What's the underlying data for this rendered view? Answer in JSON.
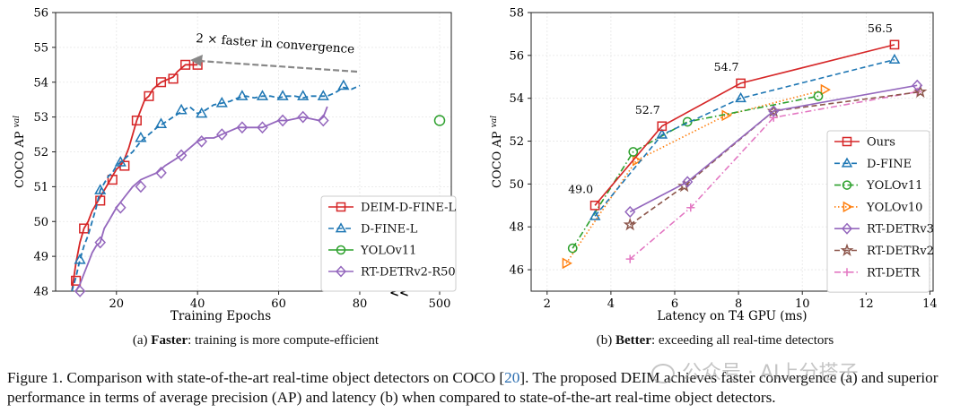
{
  "chart_data": [
    {
      "type": "line",
      "xlabel": "Training Epochs",
      "ylabel": "COCO AP",
      "ylabel_sup": "val",
      "xlim": [
        5,
        82
      ],
      "ylim": [
        48,
        56
      ],
      "xticks": [
        "20",
        "40",
        "60",
        "80"
      ],
      "xtick_values": [
        20,
        40,
        60,
        80
      ],
      "broken_axis_symbol": "<<",
      "broken_axis_tick": "500",
      "yticks": [
        "48",
        "49",
        "50",
        "51",
        "52",
        "53",
        "54",
        "55",
        "56"
      ],
      "grid": true,
      "legend_position": "lower-right",
      "annotation": "2 × faster in convergence",
      "subcaption_bold": "Faster",
      "subcaption_prefix": "(a)",
      "subcaption_rest": ": training is more compute-efficient",
      "series": [
        {
          "name": "DEIM-D-FINE-L",
          "color": "#d62728",
          "marker": "square",
          "dash": "solid",
          "curve_x": [
            9,
            10,
            11,
            12,
            13,
            14,
            15,
            16,
            17,
            18,
            19,
            20,
            21,
            22,
            23,
            24,
            25,
            26,
            27,
            28,
            29,
            30,
            31,
            32,
            33,
            34,
            35,
            36,
            37,
            38,
            39,
            40
          ],
          "curve_y": [
            48.0,
            48.8,
            49.4,
            49.8,
            50.0,
            50.3,
            50.5,
            50.7,
            50.9,
            51.1,
            51.3,
            51.5,
            51.6,
            51.8,
            52.1,
            52.5,
            52.9,
            53.2,
            53.5,
            53.6,
            53.8,
            53.9,
            54.0,
            54.05,
            54.1,
            54.15,
            54.3,
            54.4,
            54.5,
            54.5,
            54.5,
            54.5
          ],
          "marker_x": [
            10,
            12,
            16,
            19,
            22,
            25,
            28,
            31,
            34,
            37,
            40
          ],
          "marker_y": [
            48.3,
            49.8,
            50.6,
            51.2,
            51.6,
            52.9,
            53.6,
            54.0,
            54.1,
            54.5,
            54.5
          ]
        },
        {
          "name": "D-FINE-L",
          "color": "#1f77b4",
          "marker": "triangle",
          "dash": "dashed",
          "curve_x": [
            9,
            10,
            11,
            12,
            13,
            14,
            15,
            16,
            17,
            18,
            19,
            20,
            22,
            24,
            26,
            28,
            30,
            32,
            34,
            36,
            38,
            40,
            42,
            44,
            46,
            48,
            50,
            52,
            54,
            56,
            58,
            60,
            62,
            64,
            66,
            68,
            70,
            72,
            74,
            76,
            78,
            80
          ],
          "curve_y": [
            48.0,
            48.4,
            48.9,
            49.3,
            49.6,
            50.0,
            50.4,
            50.9,
            51.1,
            51.3,
            51.4,
            51.6,
            51.8,
            52.0,
            52.3,
            52.5,
            52.7,
            52.85,
            53.0,
            53.15,
            53.3,
            53.1,
            53.2,
            53.35,
            53.4,
            53.45,
            53.55,
            53.6,
            53.55,
            53.6,
            53.6,
            53.55,
            53.6,
            53.6,
            53.55,
            53.6,
            53.6,
            53.6,
            53.7,
            53.85,
            53.8,
            53.9
          ],
          "marker_x": [
            11,
            16,
            21,
            26,
            31,
            36,
            41,
            46,
            51,
            56,
            61,
            66,
            71,
            76
          ],
          "marker_y": [
            48.9,
            50.9,
            51.7,
            52.4,
            52.8,
            53.2,
            53.1,
            53.4,
            53.6,
            53.6,
            53.6,
            53.6,
            53.6,
            53.9
          ]
        },
        {
          "name": "YOLOv11",
          "color": "#2ca02c",
          "marker": "circle",
          "dash": "solid",
          "at_broken_tick": true,
          "marker_y": [
            52.9
          ]
        },
        {
          "name": "RT-DETRv2-R50",
          "color": "#9467bd",
          "marker": "diamond",
          "dash": "solid",
          "curve_x": [
            10,
            11,
            12,
            13,
            14,
            15,
            16,
            17,
            18,
            19,
            20,
            22,
            24,
            26,
            28,
            30,
            32,
            34,
            36,
            38,
            40,
            42,
            44,
            46,
            48,
            50,
            52,
            54,
            56,
            58,
            60,
            62,
            64,
            66,
            68,
            70,
            71,
            72
          ],
          "curve_y": [
            48.0,
            48.2,
            48.5,
            48.8,
            49.1,
            49.3,
            49.4,
            49.8,
            50.0,
            50.2,
            50.4,
            50.7,
            51.0,
            51.2,
            51.3,
            51.4,
            51.6,
            51.75,
            51.9,
            52.1,
            52.3,
            52.4,
            52.4,
            52.5,
            52.6,
            52.7,
            52.7,
            52.7,
            52.7,
            52.8,
            52.9,
            52.9,
            52.95,
            53.0,
            52.95,
            52.9,
            53.0,
            53.3
          ],
          "marker_x": [
            11,
            16,
            21,
            26,
            31,
            36,
            41,
            46,
            51,
            56,
            61,
            66,
            71
          ],
          "marker_y": [
            48.0,
            49.4,
            50.4,
            51.0,
            51.4,
            51.9,
            52.3,
            52.5,
            52.7,
            52.7,
            52.9,
            53.0,
            52.9
          ]
        }
      ]
    },
    {
      "type": "line",
      "xlabel": "Latency on T4 GPU (ms)",
      "ylabel": "COCO AP",
      "ylabel_sup": "val",
      "xlim": [
        1.5,
        14.1
      ],
      "ylim": [
        45,
        58
      ],
      "xticks": [
        "2",
        "4",
        "6",
        "8",
        "10",
        "12",
        "14"
      ],
      "xtick_values": [
        2,
        4,
        6,
        8,
        10,
        12,
        14
      ],
      "yticks": [
        "46",
        "48",
        "50",
        "52",
        "54",
        "56",
        "58"
      ],
      "ytick_values": [
        46,
        48,
        50,
        52,
        54,
        56,
        58
      ],
      "grid": true,
      "legend_position": "lower-right",
      "subcaption_bold": "Better",
      "subcaption_prefix": "(b)",
      "subcaption_rest": ": exceeding all real-time detectors",
      "point_labels": [
        {
          "text": "49.0",
          "x": 3.5,
          "y": 49.0
        },
        {
          "text": "52.7",
          "x": 5.6,
          "y": 52.7
        },
        {
          "text": "54.7",
          "x": 8.07,
          "y": 54.7
        },
        {
          "text": "56.5",
          "x": 12.89,
          "y": 56.5
        }
      ],
      "series": [
        {
          "name": "Ours",
          "color": "#d62728",
          "marker": "square",
          "dash": "solid",
          "x": [
            3.5,
            5.6,
            8.07,
            12.89
          ],
          "y": [
            49.0,
            52.7,
            54.7,
            56.5
          ]
        },
        {
          "name": "D-FINE",
          "color": "#1f77b4",
          "marker": "triangle",
          "dash": "dashed",
          "x": [
            3.5,
            5.6,
            8.07,
            12.89
          ],
          "y": [
            48.5,
            52.3,
            54.0,
            55.8
          ]
        },
        {
          "name": "YOLOv11",
          "color": "#2ca02c",
          "marker": "circle",
          "dash": "dashdot",
          "x": [
            2.8,
            4.7,
            6.4,
            10.5
          ],
          "y": [
            47.0,
            51.5,
            52.9,
            54.1
          ]
        },
        {
          "name": "YOLOv10",
          "color": "#ff7f0e",
          "marker": "triangle-right",
          "dash": "dotted",
          "x": [
            2.6,
            4.8,
            7.6,
            10.7
          ],
          "y": [
            46.3,
            51.1,
            53.2,
            54.4
          ]
        },
        {
          "name": "RT-DETRv3",
          "color": "#9467bd",
          "marker": "diamond",
          "dash": "solid",
          "x": [
            4.6,
            6.4,
            9.1,
            13.6
          ],
          "y": [
            48.7,
            50.1,
            53.4,
            54.6
          ]
        },
        {
          "name": "RT-DETRv2",
          "color": "#8c564b",
          "marker": "star",
          "dash": "dashed",
          "x": [
            4.6,
            6.3,
            9.1,
            13.7
          ],
          "y": [
            48.1,
            49.9,
            53.4,
            54.3
          ]
        },
        {
          "name": "RT-DETR",
          "color": "#e377c2",
          "marker": "plus",
          "dash": "dashdot",
          "x": [
            4.6,
            6.5,
            9.1,
            13.6
          ],
          "y": [
            46.5,
            48.9,
            53.1,
            54.3
          ]
        }
      ]
    }
  ],
  "caption": {
    "prefix": "Figure 1. Comparison with state-of-the-art real-time object detectors on COCO [",
    "ref": "20",
    "suffix": "]. The proposed DEIM achieves faster convergence (a) and superior performance in terms of average precision (AP) and latency (b) when compared to state-of-the-art real-time object detectors."
  },
  "watermark": {
    "text": "公众号 · AI上分搭子",
    "icon": "wechat-icon"
  }
}
